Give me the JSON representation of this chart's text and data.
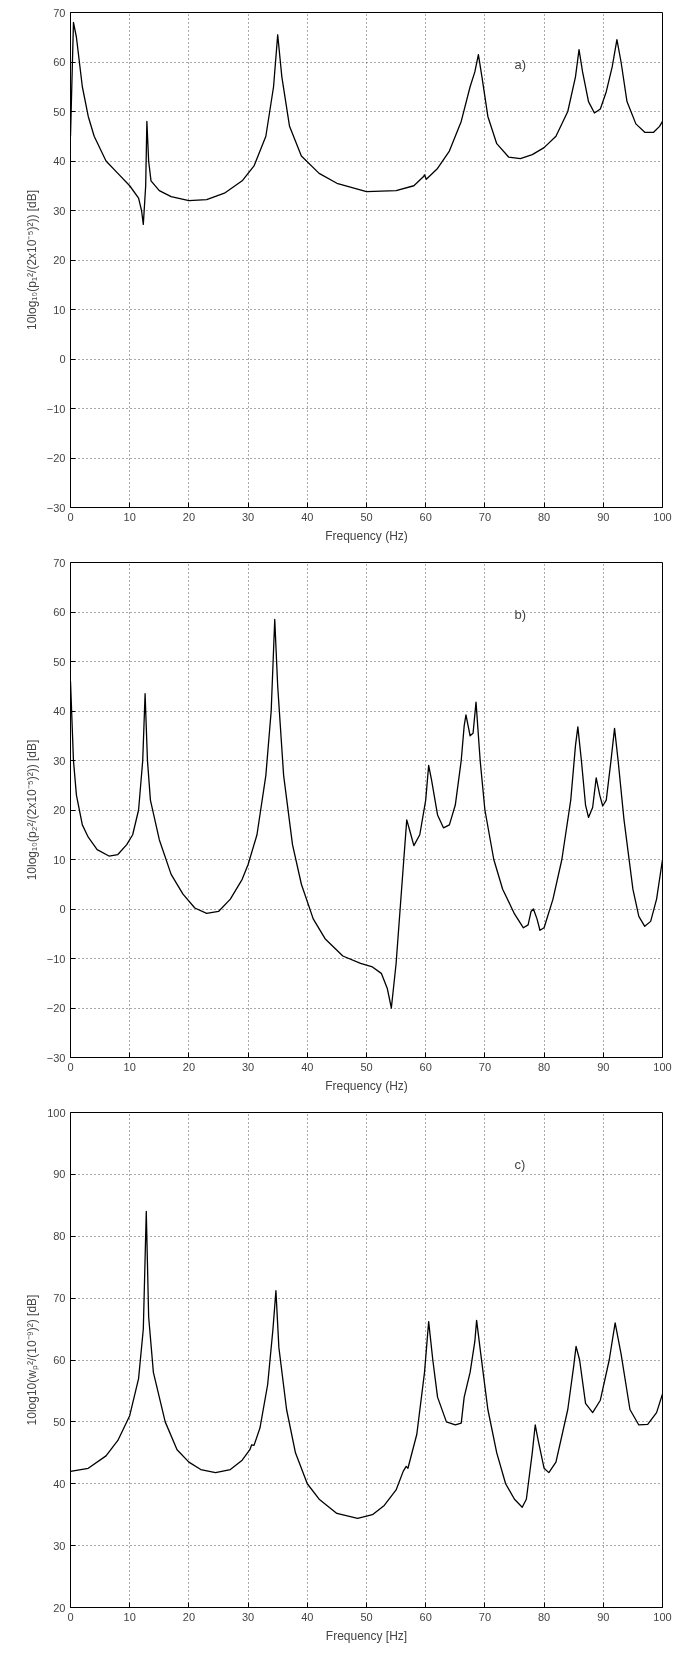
{
  "chart_data": [
    {
      "type": "line",
      "xlabel": "Frequency (Hz)",
      "ylabel": "10log₁₀(p₁²/(2x10⁻⁵)²)) [dB]",
      "annotations": [
        "a)"
      ],
      "xlim": [
        0,
        100
      ],
      "ylim": [
        -30,
        70
      ],
      "xticks": [
        0,
        10,
        20,
        30,
        40,
        50,
        60,
        70,
        80,
        90,
        100
      ],
      "yticks": [
        -30,
        -20,
        -10,
        0,
        10,
        20,
        30,
        40,
        50,
        60,
        70
      ],
      "grid": true,
      "line_style": "solid",
      "marker": "none",
      "series": [
        {
          "color": "#000000",
          "x": [
            0,
            0.5,
            1,
            2,
            3,
            4,
            6,
            8,
            10,
            11.5,
            12,
            12.3,
            12.7,
            12.9,
            13.2,
            13.6,
            15,
            17,
            20,
            23,
            26,
            29,
            31,
            33,
            34.3,
            35,
            35.7,
            37,
            39,
            42,
            45,
            50,
            55,
            58,
            59.6,
            59.8,
            60.1,
            62,
            64,
            66,
            67.5,
            68.3,
            68.9,
            69.5,
            70.5,
            72,
            74,
            76,
            78,
            80,
            82,
            84,
            85.3,
            85.9,
            86.5,
            87.5,
            88.5,
            89.5,
            90.5,
            91.5,
            92.3,
            93,
            94,
            95.5,
            97,
            98.5,
            99.5,
            100
          ],
          "values": [
            45,
            68,
            65,
            55,
            49,
            45,
            40,
            37.5,
            35,
            32.5,
            30,
            27.2,
            35,
            48,
            40,
            36,
            34,
            32.8,
            32,
            32.2,
            33.5,
            36,
            39,
            45,
            55,
            65.5,
            57,
            47,
            41,
            37.5,
            35.5,
            33.8,
            34,
            35,
            36.8,
            37.2,
            36.3,
            38.5,
            42,
            48,
            55,
            58,
            61.5,
            57,
            49,
            43.5,
            40.8,
            40.5,
            41.3,
            42.7,
            45,
            50,
            57,
            62.5,
            58,
            52,
            49.7,
            50.5,
            54,
            59,
            64.5,
            60,
            52,
            47.5,
            45.8,
            45.8,
            47,
            48
          ]
        }
      ]
    },
    {
      "type": "line",
      "xlabel": "Frequency (Hz)",
      "ylabel": "10log₁₀(p₂²/(2x10⁻⁵)²)) [dB]",
      "annotations": [
        "b)"
      ],
      "xlim": [
        0,
        100
      ],
      "ylim": [
        -30,
        70
      ],
      "xticks": [
        0,
        10,
        20,
        30,
        40,
        50,
        60,
        70,
        80,
        90,
        100
      ],
      "yticks": [
        -30,
        -20,
        -10,
        0,
        10,
        20,
        30,
        40,
        50,
        60,
        70
      ],
      "grid": true,
      "line_style": "solid",
      "marker": "none",
      "series": [
        {
          "color": "#000000",
          "x": [
            0,
            0.5,
            1,
            2,
            3,
            4.5,
            6.5,
            8,
            9.5,
            10.5,
            11.5,
            12.2,
            12.6,
            13,
            13.5,
            15,
            17,
            19,
            21,
            23,
            25,
            27,
            29,
            30,
            31.5,
            33,
            33.9,
            34.5,
            35,
            36,
            37.5,
            39,
            41,
            43,
            46,
            49,
            51,
            52.5,
            53.5,
            54.2,
            55,
            56.3,
            56.8,
            57.5,
            58,
            59,
            60,
            60.5,
            61,
            62,
            63,
            64,
            65,
            66,
            66.5,
            66.8,
            67.5,
            68,
            68.5,
            69.2,
            70,
            71.5,
            73,
            75,
            76.5,
            77.3,
            77.8,
            78.2,
            78.8,
            79.3,
            80,
            81.5,
            83,
            84.5,
            85.3,
            85.7,
            86.3,
            87,
            87.5,
            88.2,
            88.8,
            89.4,
            89.9,
            90.5,
            91.3,
            91.9,
            92.5,
            93.5,
            95,
            96,
            97,
            98,
            99,
            100
          ],
          "values": [
            46,
            30,
            23,
            17,
            14.5,
            12,
            10.7,
            11,
            13,
            15,
            20,
            30,
            43.5,
            30,
            22,
            14,
            7,
            3,
            0.2,
            -0.9,
            -0.5,
            2,
            6,
            9,
            15,
            27,
            40,
            58.5,
            45,
            27,
            13,
            5,
            -2,
            -6,
            -9.5,
            -11,
            -11.7,
            -13,
            -16,
            -20,
            -11,
            10,
            18,
            15,
            12.8,
            15,
            22,
            29,
            26,
            19,
            16.4,
            17,
            21,
            30,
            37,
            39.2,
            35,
            35.5,
            41.8,
            30,
            20,
            10,
            4,
            -1,
            -3.8,
            -3.2,
            -0.5,
            0,
            -2,
            -4.3,
            -3.8,
            2,
            10,
            22,
            33,
            36.8,
            30,
            21,
            18.5,
            20.5,
            26.5,
            23,
            20.8,
            22,
            30,
            36.5,
            30,
            18,
            4,
            -1.5,
            -3.5,
            -2.5,
            2,
            10
          ]
        }
      ]
    },
    {
      "type": "line",
      "xlabel": "Frequency [Hz]",
      "ylabel": "10log10(wₚ²/(10⁻⁹)²) [dB]",
      "annotations": [
        "c)"
      ],
      "xlim": [
        0,
        100
      ],
      "ylim": [
        20,
        100
      ],
      "xticks": [
        0,
        10,
        20,
        30,
        40,
        50,
        60,
        70,
        80,
        90,
        100
      ],
      "yticks": [
        20,
        30,
        40,
        50,
        60,
        70,
        80,
        90,
        100
      ],
      "grid": true,
      "line_style": "solid",
      "marker": "none",
      "series": [
        {
          "color": "#000000",
          "x": [
            0,
            3,
            6,
            8,
            10,
            11.5,
            12.3,
            12.8,
            13.2,
            14,
            16,
            18,
            20,
            22,
            24.5,
            27,
            29,
            30.3,
            30.6,
            31,
            32,
            33.3,
            34.2,
            34.7,
            35.2,
            36.5,
            38,
            40,
            42,
            45,
            48.5,
            51,
            53,
            55,
            56.2,
            56.7,
            57,
            58.5,
            59.8,
            60.5,
            61.2,
            62,
            63.5,
            65,
            66,
            66.5,
            67.5,
            68.3,
            68.6,
            69.3,
            70.5,
            72,
            73.5,
            75,
            76.3,
            77,
            78,
            78.5,
            79,
            80,
            80.8,
            82,
            84,
            85,
            85.4,
            86,
            87,
            88.2,
            89.5,
            91,
            92,
            93,
            94.5,
            96,
            97.5,
            99,
            100
          ],
          "values": [
            42,
            42.5,
            44.5,
            47,
            51,
            57,
            65,
            84,
            67,
            58,
            50,
            45.5,
            43.5,
            42.3,
            41.8,
            42.3,
            43.8,
            45.5,
            46.3,
            46.2,
            49,
            56,
            65,
            71.2,
            62,
            52,
            45,
            40,
            37.5,
            35.2,
            34.4,
            35,
            36.5,
            39,
            42,
            42.8,
            42.5,
            48,
            58,
            66.2,
            60,
            54,
            50,
            49.5,
            49.8,
            54,
            58,
            63,
            66.4,
            61,
            52,
            45,
            40,
            37.5,
            36.2,
            37.5,
            45,
            49.5,
            47,
            42.5,
            41.8,
            43.5,
            52,
            59,
            62.2,
            60,
            53,
            51.5,
            53.5,
            60,
            66,
            61,
            52,
            49.5,
            49.6,
            51.5,
            54.5
          ]
        }
      ]
    }
  ]
}
